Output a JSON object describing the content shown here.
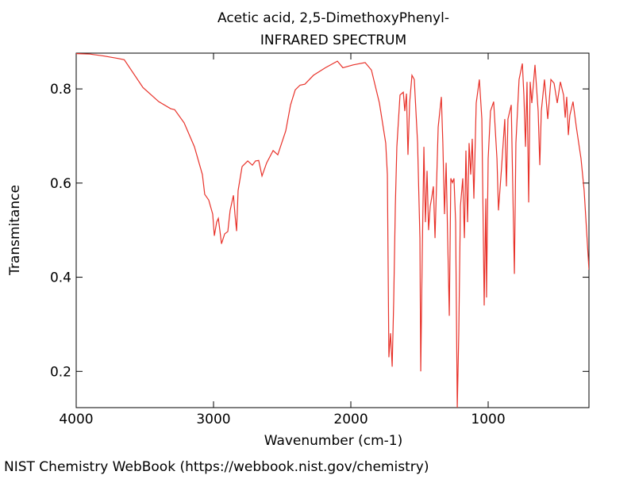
{
  "chart_data": {
    "type": "line",
    "title": "Acetic acid, 2,5-DimethoxyPhenyl-",
    "subtitle": "INFRARED SPECTRUM",
    "xlabel": "Wavenumber (cm-1)",
    "ylabel": "Transmitance",
    "footer": "NIST Chemistry WebBook (https://webbook.nist.gov/chemistry)",
    "xlim": [
      4000,
      266
    ],
    "ylim": [
      0.123,
      0.876
    ],
    "xticks": [
      4000,
      3000,
      2000,
      1000
    ],
    "yticks": [
      {
        "value": 0.2,
        "label": "0.2"
      },
      {
        "value": 0.4,
        "label": "0.4"
      },
      {
        "value": 0.6,
        "label": "0.6"
      },
      {
        "value": 0.8,
        "label": "0.8"
      }
    ],
    "series": [
      {
        "color": "#e8322a",
        "x": [
          4000,
          3900,
          3800,
          3700,
          3650,
          3514,
          3399,
          3312,
          3283,
          3214,
          3139,
          3081,
          3064,
          3035,
          3006,
          2994,
          2977,
          2965,
          2954,
          2942,
          2919,
          2896,
          2879,
          2855,
          2844,
          2832,
          2821,
          2792,
          2751,
          2717,
          2694,
          2671,
          2647,
          2613,
          2566,
          2532,
          2474,
          2439,
          2405,
          2370,
          2335,
          2272,
          2185,
          2098,
          2058,
          1983,
          1896,
          1850,
          1792,
          1746,
          1734,
          1723,
          1711,
          1699,
          1688,
          1676,
          1665,
          1642,
          1618,
          1607,
          1595,
          1584,
          1572,
          1555,
          1538,
          1514,
          1497,
          1491,
          1480,
          1468,
          1457,
          1445,
          1434,
          1422,
          1410,
          1399,
          1387,
          1364,
          1341,
          1330,
          1318,
          1306,
          1295,
          1283,
          1272,
          1260,
          1249,
          1237,
          1225,
          1214,
          1202,
          1185,
          1173,
          1162,
          1150,
          1139,
          1127,
          1116,
          1104,
          1087,
          1064,
          1046,
          1035,
          1029,
          1017,
          1012,
          1000,
          983,
          960,
          936,
          925,
          902,
          879,
          867,
          856,
          832,
          809,
          798,
          775,
          751,
          740,
          728,
          717,
          705,
          694,
          682,
          659,
          636,
          624,
          613,
          590,
          566,
          543,
          520,
          497,
          474,
          451,
          439,
          428,
          416,
          405,
          382,
          358,
          324,
          301,
          266
        ],
        "values": [
          0.875,
          0.874,
          0.87,
          0.865,
          0.862,
          0.803,
          0.773,
          0.758,
          0.756,
          0.728,
          0.677,
          0.618,
          0.576,
          0.564,
          0.534,
          0.488,
          0.517,
          0.525,
          0.5,
          0.471,
          0.492,
          0.497,
          0.542,
          0.574,
          0.534,
          0.498,
          0.584,
          0.635,
          0.647,
          0.638,
          0.647,
          0.648,
          0.615,
          0.643,
          0.669,
          0.66,
          0.711,
          0.766,
          0.798,
          0.808,
          0.81,
          0.829,
          0.845,
          0.859,
          0.845,
          0.851,
          0.856,
          0.84,
          0.77,
          0.685,
          0.618,
          0.23,
          0.281,
          0.21,
          0.348,
          0.551,
          0.677,
          0.787,
          0.793,
          0.753,
          0.79,
          0.66,
          0.77,
          0.829,
          0.82,
          0.685,
          0.483,
          0.2,
          0.45,
          0.677,
          0.517,
          0.626,
          0.5,
          0.551,
          0.571,
          0.593,
          0.483,
          0.719,
          0.783,
          0.685,
          0.534,
          0.643,
          0.483,
          0.318,
          0.61,
          0.601,
          0.61,
          0.517,
          0.123,
          0.281,
          0.551,
          0.61,
          0.483,
          0.669,
          0.517,
          0.685,
          0.618,
          0.694,
          0.567,
          0.77,
          0.82,
          0.736,
          0.483,
          0.34,
          0.567,
          0.357,
          0.652,
          0.753,
          0.773,
          0.652,
          0.542,
          0.635,
          0.736,
          0.593,
          0.736,
          0.766,
          0.407,
          0.685,
          0.82,
          0.854,
          0.787,
          0.677,
          0.815,
          0.559,
          0.815,
          0.77,
          0.851,
          0.753,
          0.638,
          0.753,
          0.82,
          0.736,
          0.82,
          0.812,
          0.77,
          0.815,
          0.787,
          0.739,
          0.783,
          0.702,
          0.744,
          0.773,
          0.719,
          0.652,
          0.584,
          0.416
        ]
      }
    ]
  }
}
